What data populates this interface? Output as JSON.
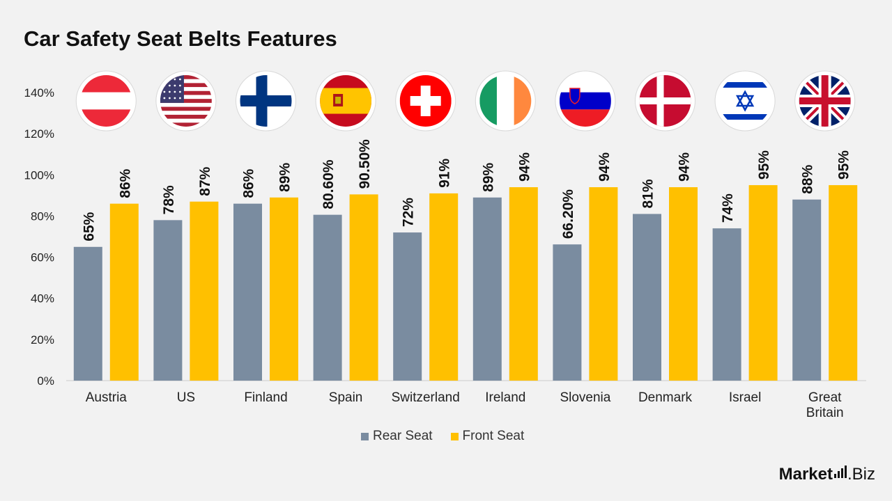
{
  "title": "Car Safety Seat Belts Features",
  "legend": {
    "rear": "Rear Seat",
    "front": "Front Seat"
  },
  "brand": {
    "name": "Market",
    "suffix": ".Biz"
  },
  "colors": {
    "rear": "#7a8ca0",
    "front": "#ffc000",
    "axis": "#cccccc",
    "background": "#f2f2f2"
  },
  "chart_data": {
    "type": "bar",
    "title": "Car Safety Seat Belts Features",
    "categories": [
      "Austria",
      "US",
      "Finland",
      "Spain",
      "Switzerland",
      "Ireland",
      "Slovenia",
      "Denmark",
      "Israel",
      "Great Britain"
    ],
    "series": [
      {
        "name": "Rear Seat",
        "values": [
          65,
          78,
          86,
          80.6,
          72,
          89,
          66.2,
          81,
          74,
          88
        ],
        "labels": [
          "65%",
          "78%",
          "86%",
          "80.60%",
          "72%",
          "89%",
          "66.20%",
          "81%",
          "74%",
          "88%"
        ]
      },
      {
        "name": "Front Seat",
        "values": [
          86,
          87,
          89,
          90.5,
          91,
          94,
          94,
          94,
          95,
          95
        ],
        "labels": [
          "86%",
          "87%",
          "89%",
          "90.50%",
          "91%",
          "94%",
          "94%",
          "94%",
          "95%",
          "95%"
        ]
      }
    ],
    "yticks": [
      "0%",
      "20%",
      "40%",
      "60%",
      "80%",
      "100%",
      "120%",
      "140%"
    ],
    "ylim": [
      0,
      140
    ],
    "grid": false,
    "legend_position": "bottom",
    "flags": [
      "austria-flag",
      "us-flag",
      "finland-flag",
      "spain-flag",
      "switzerland-flag",
      "ireland-flag",
      "slovenia-flag",
      "denmark-flag",
      "israel-flag",
      "great-britain-flag"
    ]
  }
}
